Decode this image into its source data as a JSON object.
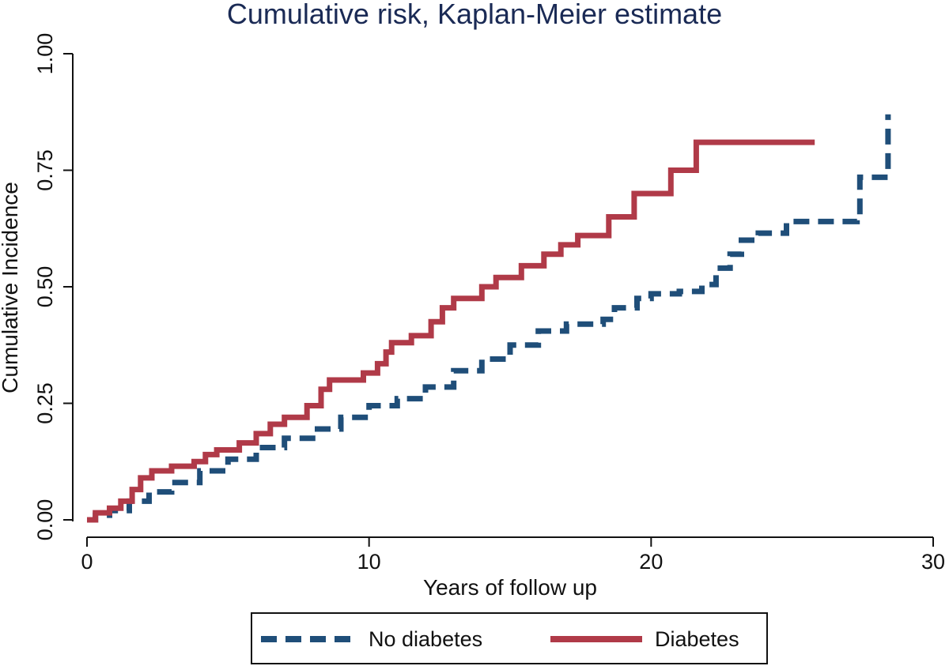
{
  "chart_data": {
    "type": "line",
    "title": "Cumulative risk, Kaplan-Meier estimate",
    "xlabel": "Years of follow up",
    "ylabel": "Cumulative Incidence",
    "xlim": [
      0,
      30
    ],
    "ylim": [
      0,
      1
    ],
    "x_ticks": [
      0,
      10,
      20,
      30
    ],
    "x_tick_labels": [
      "0",
      "10",
      "20",
      "30"
    ],
    "y_ticks": [
      0,
      0.25,
      0.5,
      0.75,
      1.0
    ],
    "y_tick_labels": [
      "0.00",
      "0.25",
      "0.50",
      "0.75",
      "1.00"
    ],
    "grid": false,
    "legend_position": "bottom",
    "series": [
      {
        "name": "No diabetes",
        "color": "#1f4e79",
        "style": "dashed",
        "step_points": [
          [
            0,
            0
          ],
          [
            0.3,
            0.01
          ],
          [
            0.8,
            0.02
          ],
          [
            1.5,
            0.04
          ],
          [
            2.2,
            0.06
          ],
          [
            3.0,
            0.08
          ],
          [
            4.0,
            0.105
          ],
          [
            5.0,
            0.13
          ],
          [
            6.0,
            0.155
          ],
          [
            7.0,
            0.175
          ],
          [
            8.0,
            0.195
          ],
          [
            9.0,
            0.22
          ],
          [
            10.0,
            0.245
          ],
          [
            11.0,
            0.26
          ],
          [
            12.0,
            0.285
          ],
          [
            13.0,
            0.32
          ],
          [
            14.0,
            0.345
          ],
          [
            15.0,
            0.375
          ],
          [
            16.0,
            0.405
          ],
          [
            17.0,
            0.42
          ],
          [
            18.3,
            0.43
          ],
          [
            18.7,
            0.455
          ],
          [
            19.5,
            0.475
          ],
          [
            20.0,
            0.485
          ],
          [
            21.0,
            0.49
          ],
          [
            21.8,
            0.505
          ],
          [
            22.3,
            0.54
          ],
          [
            22.8,
            0.57
          ],
          [
            23.2,
            0.6
          ],
          [
            23.8,
            0.615
          ],
          [
            24.8,
            0.64
          ],
          [
            27.3,
            0.65
          ],
          [
            27.4,
            0.735
          ],
          [
            28.4,
            0.87
          ]
        ]
      },
      {
        "name": "Diabetes",
        "color": "#b03a48",
        "style": "solid",
        "step_points": [
          [
            0,
            0
          ],
          [
            0.3,
            0.015
          ],
          [
            0.8,
            0.025
          ],
          [
            1.2,
            0.04
          ],
          [
            1.6,
            0.065
          ],
          [
            1.9,
            0.09
          ],
          [
            2.3,
            0.105
          ],
          [
            3.0,
            0.115
          ],
          [
            3.8,
            0.125
          ],
          [
            4.2,
            0.14
          ],
          [
            4.6,
            0.15
          ],
          [
            5.4,
            0.165
          ],
          [
            6.0,
            0.185
          ],
          [
            6.5,
            0.205
          ],
          [
            7.0,
            0.22
          ],
          [
            7.8,
            0.245
          ],
          [
            8.3,
            0.28
          ],
          [
            8.6,
            0.3
          ],
          [
            9.8,
            0.315
          ],
          [
            10.3,
            0.335
          ],
          [
            10.6,
            0.36
          ],
          [
            10.8,
            0.38
          ],
          [
            11.5,
            0.395
          ],
          [
            12.2,
            0.425
          ],
          [
            12.6,
            0.455
          ],
          [
            13.0,
            0.475
          ],
          [
            14.0,
            0.5
          ],
          [
            14.5,
            0.52
          ],
          [
            15.4,
            0.545
          ],
          [
            16.2,
            0.57
          ],
          [
            16.8,
            0.59
          ],
          [
            17.4,
            0.61
          ],
          [
            18.5,
            0.65
          ],
          [
            19.4,
            0.7
          ],
          [
            20.7,
            0.75
          ],
          [
            21.6,
            0.81
          ],
          [
            25.8,
            0.81
          ]
        ]
      }
    ]
  }
}
